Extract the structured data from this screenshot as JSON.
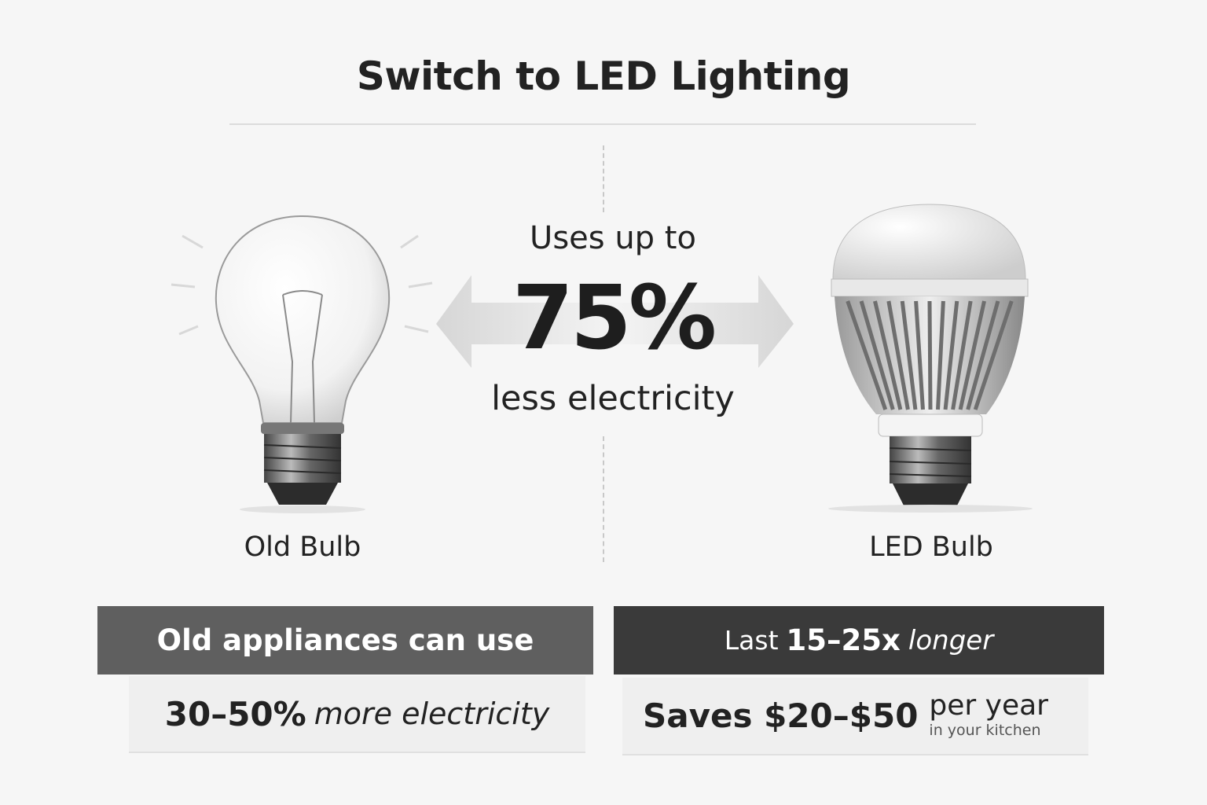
{
  "title": "Switch to LED Lighting",
  "center": {
    "top": "Uses up to",
    "value": "75%",
    "bottom": "less electricity"
  },
  "old_bulb": {
    "label": "Old Bulb",
    "icon": "incandescent-bulb-icon"
  },
  "led_bulb": {
    "label": "LED Bulb",
    "icon": "led-bulb-icon"
  },
  "left_panel": {
    "header": "Old appliances can use",
    "value": "30–50%",
    "value_suffix": "more electricity"
  },
  "right_panel": {
    "header_prefix": "Last",
    "header_value": "15–25x",
    "header_suffix": "longer",
    "value": "Saves $20–$50",
    "value_suffix": "per year",
    "note": "in your kitchen"
  },
  "colors": {
    "background": "#f6f6f6",
    "left_header": "#5f5f5f",
    "right_header": "#3a3a3a",
    "text": "#222222"
  }
}
